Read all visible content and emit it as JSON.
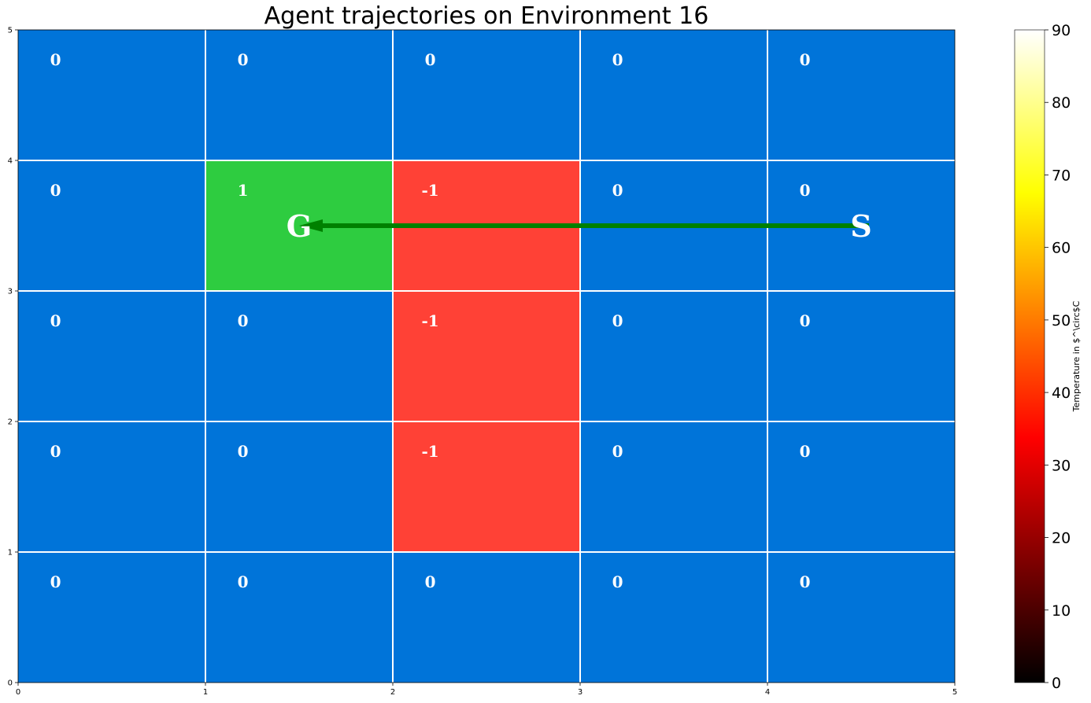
{
  "chart_data": {
    "type": "heatmap",
    "title": "Agent trajectories on Environment 16",
    "xlim": [
      0,
      5
    ],
    "ylim": [
      0,
      5
    ],
    "xticks": [
      "0",
      "1",
      "2",
      "3",
      "4",
      "5"
    ],
    "yticks": [
      "0",
      "1",
      "2",
      "3",
      "4",
      "5"
    ],
    "grid": true,
    "rewards": [
      [
        "0",
        "0",
        "0",
        "0",
        "0"
      ],
      [
        "0",
        "1",
        "-1",
        "0",
        "0"
      ],
      [
        "0",
        "0",
        "-1",
        "0",
        "0"
      ],
      [
        "0",
        "0",
        "-1",
        "0",
        "0"
      ],
      [
        "0",
        "0",
        "0",
        "0",
        "0"
      ]
    ],
    "cell_colors": {
      "0": "#0074d9",
      "1": "#2ecc40",
      "-1": "#ff4136"
    },
    "start": {
      "label": "S",
      "x": 4.5,
      "y": 3.5
    },
    "goal": {
      "label": "G",
      "x": 1.5,
      "y": 3.5
    },
    "trajectory": {
      "color": "#008000",
      "points": [
        [
          4.5,
          3.5
        ],
        [
          1.5,
          3.5
        ]
      ]
    },
    "colorbar": {
      "label": "Temperature in $^\\circ$C",
      "range": [
        0,
        90
      ],
      "ticks": [
        "0",
        "10",
        "20",
        "30",
        "40",
        "50",
        "60",
        "70",
        "80",
        "90"
      ],
      "colormap": "hot",
      "colormap_stops": [
        "#000000",
        "#ff0000",
        "#ffff00",
        "#ffffff"
      ]
    }
  }
}
